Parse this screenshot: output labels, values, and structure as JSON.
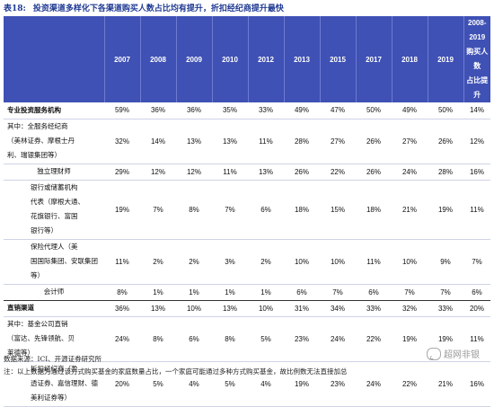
{
  "title": {
    "number": "表18:",
    "text": "投资渠道多样化下各渠道购买人数占比均有提升，折扣经纪商提升最快"
  },
  "table": {
    "headers": [
      "2007",
      "2008",
      "2009",
      "2010",
      "2012",
      "2013",
      "2015",
      "2017",
      "2018",
      "2019",
      "2008-2019\n购买人数\n占比提升"
    ],
    "rows": [
      {
        "label": "专业投资服务机构",
        "style": "bold",
        "height": 18,
        "values": [
          "59%",
          "36%",
          "36%",
          "35%",
          "33%",
          "49%",
          "47%",
          "50%",
          "49%",
          "50%",
          "14%"
        ]
      },
      {
        "label": "其中：全服务经纪商\n（美林证券、摩根士丹\n利、瑞银集团等）",
        "style": "",
        "height": 50,
        "values": [
          "32%",
          "14%",
          "13%",
          "13%",
          "11%",
          "28%",
          "27%",
          "26%",
          "27%",
          "26%",
          "12%"
        ]
      },
      {
        "label": "独立理财师",
        "style": "center",
        "height": 18,
        "values": [
          "29%",
          "12%",
          "12%",
          "11%",
          "13%",
          "26%",
          "22%",
          "26%",
          "24%",
          "28%",
          "16%"
        ]
      },
      {
        "label": "银行或储蓄机构\n代表（摩根大通、\n花旗银行、富国\n银行等）",
        "style": "ind",
        "height": 66,
        "values": [
          "19%",
          "7%",
          "8%",
          "7%",
          "6%",
          "18%",
          "15%",
          "18%",
          "21%",
          "19%",
          "11%"
        ]
      },
      {
        "label": "保险代理人（美\n国国际集团、安联集团\n等）",
        "style": "ind",
        "height": 50,
        "values": [
          "11%",
          "2%",
          "2%",
          "3%",
          "2%",
          "10%",
          "10%",
          "11%",
          "10%",
          "9%",
          "7%"
        ]
      },
      {
        "label": "会计师",
        "style": "center",
        "height": 18,
        "values": [
          "8%",
          "1%",
          "1%",
          "1%",
          "1%",
          "6%",
          "7%",
          "6%",
          "7%",
          "7%",
          "6%"
        ]
      },
      {
        "label": "直销渠道",
        "style": "bold top",
        "height": 18,
        "values": [
          "36%",
          "13%",
          "10%",
          "13%",
          "10%",
          "31%",
          "34%",
          "33%",
          "32%",
          "33%",
          "20%"
        ]
      },
      {
        "label": "其中：基金公司直销\n（富达、先锋领航、贝\n莱德等）",
        "style": "",
        "height": 50,
        "values": [
          "24%",
          "8%",
          "6%",
          "8%",
          "5%",
          "23%",
          "24%",
          "22%",
          "19%",
          "19%",
          "11%"
        ]
      },
      {
        "label": "折扣经纪商（盈\n透证券、嘉信理财、德\n美利证券等）",
        "style": "ind",
        "height": 50,
        "values": [
          "20%",
          "5%",
          "4%",
          "5%",
          "4%",
          "19%",
          "23%",
          "24%",
          "22%",
          "21%",
          "16%"
        ]
      }
    ]
  },
  "footer": {
    "source": "数据来源：ICI、开源证券研究所",
    "note": "注：以上数据为通过该方式购买基金的家庭数量占比，一个家庭可能通过多种方式购买基金，故比例数无法直接加总"
  },
  "watermark": {
    "text": "超网非银"
  }
}
